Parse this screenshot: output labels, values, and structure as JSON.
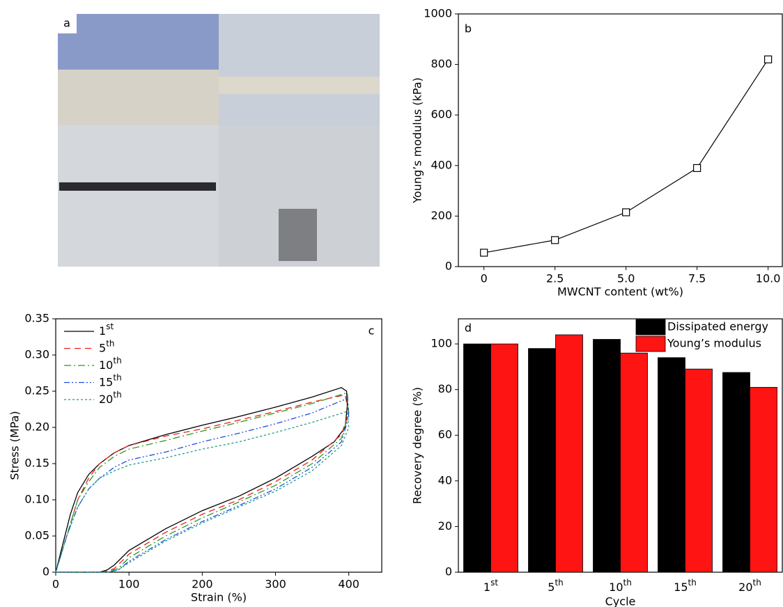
{
  "chart_data": [
    {
      "type": "image",
      "panel_label": "a"
    },
    {
      "type": "line",
      "panel_label": "b",
      "x_label": "MWCNT content (wt%)",
      "y_label": "Young’s modulus (kPa)",
      "x": [
        0,
        2.5,
        5,
        7.5,
        10
      ],
      "values": [
        55,
        105,
        215,
        390,
        820
      ],
      "color": "#000000",
      "marker": "open-square",
      "xlim": [
        -0.9,
        10.5
      ],
      "xticks": [
        0,
        2.5,
        {
          "value": 5,
          "label": "5.0"
        },
        7.5,
        {
          "value": 10,
          "label": "10.0"
        }
      ],
      "ylim": [
        0,
        1000
      ],
      "yticks": [
        0,
        200,
        400,
        600,
        800,
        1000
      ]
    },
    {
      "type": "line",
      "panel_label": "c",
      "x_label": "Strain (%)",
      "y_label": "Stress (MPa)",
      "legend": "upper-left",
      "xlim": [
        0,
        445
      ],
      "xticks": [
        0,
        100,
        200,
        300,
        400
      ],
      "ylim": [
        0,
        0.35
      ],
      "yticks": [
        0,
        0.05,
        {
          "value": 0.1,
          "label": "0.10"
        },
        0.15,
        {
          "value": 0.2,
          "label": "0.20"
        },
        0.25,
        {
          "value": 0.3,
          "label": "0.30"
        },
        0.35
      ],
      "series": [
        {
          "name": "1st",
          "color": "#000000",
          "line_style": "solid",
          "x": [
            0,
            10,
            20,
            30,
            45,
            60,
            80,
            100,
            150,
            200,
            250,
            300,
            350,
            390,
            397,
            398,
            395,
            380,
            350,
            300,
            250,
            200,
            150,
            100,
            80,
            70,
            60,
            30,
            0
          ],
          "values": [
            0,
            0.04,
            0.08,
            0.11,
            0.135,
            0.15,
            0.165,
            0.175,
            0.19,
            0.203,
            0.215,
            0.228,
            0.242,
            0.255,
            0.25,
            0.23,
            0.2,
            0.18,
            0.16,
            0.13,
            0.105,
            0.085,
            0.06,
            0.03,
            0.01,
            0.003,
            0,
            0,
            0
          ]
        },
        {
          "name": "5th",
          "color": "#ee1c1c",
          "line_style": "dashed",
          "x": [
            0,
            15,
            30,
            45,
            60,
            80,
            100,
            150,
            200,
            250,
            300,
            350,
            395,
            400,
            390,
            350,
            300,
            250,
            200,
            150,
            100,
            80,
            65,
            0
          ],
          "values": [
            0,
            0.05,
            0.1,
            0.13,
            0.15,
            0.165,
            0.175,
            0.188,
            0.198,
            0.21,
            0.222,
            0.235,
            0.245,
            0.22,
            0.19,
            0.155,
            0.125,
            0.1,
            0.08,
            0.055,
            0.025,
            0.005,
            0,
            0
          ]
        },
        {
          "name": "10th",
          "color": "#2a9a1a",
          "line_style": "dashdot",
          "x": [
            0,
            15,
            30,
            45,
            60,
            80,
            100,
            150,
            200,
            250,
            300,
            350,
            398,
            400,
            390,
            350,
            300,
            250,
            200,
            150,
            100,
            85,
            70,
            0
          ],
          "values": [
            0,
            0.05,
            0.1,
            0.125,
            0.145,
            0.16,
            0.17,
            0.182,
            0.195,
            0.207,
            0.22,
            0.233,
            0.248,
            0.22,
            0.185,
            0.15,
            0.12,
            0.097,
            0.075,
            0.05,
            0.02,
            0.005,
            0,
            0
          ]
        },
        {
          "name": "15th",
          "color": "#1a4de0",
          "line_style": "dashdotdot",
          "x": [
            0,
            15,
            30,
            45,
            60,
            80,
            100,
            150,
            200,
            250,
            300,
            350,
            398,
            400,
            390,
            350,
            300,
            250,
            200,
            150,
            100,
            85,
            70,
            0
          ],
          "values": [
            0,
            0.05,
            0.09,
            0.115,
            0.13,
            0.145,
            0.155,
            0.166,
            0.18,
            0.192,
            0.205,
            0.22,
            0.24,
            0.215,
            0.18,
            0.145,
            0.115,
            0.092,
            0.07,
            0.045,
            0.015,
            0.003,
            0,
            0
          ]
        },
        {
          "name": "20th",
          "color": "#1a9a8a",
          "line_style": "dotted",
          "x": [
            0,
            15,
            30,
            45,
            60,
            80,
            100,
            150,
            200,
            250,
            300,
            350,
            398,
            400,
            390,
            350,
            300,
            250,
            200,
            150,
            100,
            85,
            70,
            0
          ],
          "values": [
            0,
            0.05,
            0.09,
            0.115,
            0.13,
            0.14,
            0.148,
            0.158,
            0.17,
            0.18,
            0.193,
            0.207,
            0.222,
            0.2,
            0.175,
            0.14,
            0.112,
            0.09,
            0.068,
            0.043,
            0.013,
            0.003,
            0,
            0
          ]
        }
      ]
    },
    {
      "type": "bar",
      "panel_label": "d",
      "x_label": "Cycle",
      "y_label": "Recovery degree (%)",
      "legend": "upper-right",
      "categories": [
        "1st",
        "5th",
        "10th",
        "15th",
        "20th"
      ],
      "ylim": [
        0,
        111
      ],
      "yticks": [
        0,
        20,
        40,
        60,
        80,
        100
      ],
      "series": [
        {
          "name": "Dissipated energy",
          "color": "#000000",
          "values": [
            100,
            98,
            102,
            94,
            87.5
          ]
        },
        {
          "name": "Young’s modulus",
          "color": "#ff1414",
          "values": [
            100,
            104,
            96,
            89,
            81
          ]
        }
      ]
    }
  ]
}
